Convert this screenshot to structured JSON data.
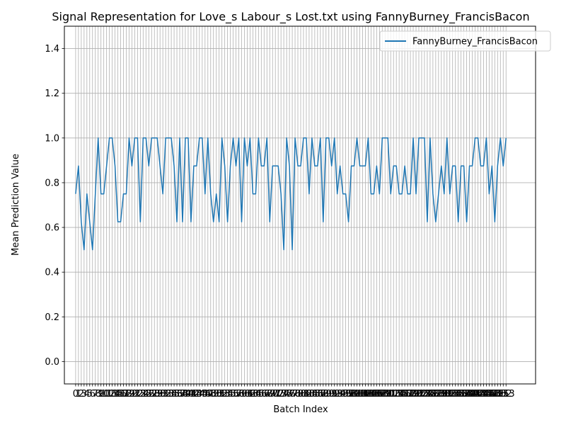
{
  "chart_data": {
    "type": "line",
    "title": "Signal Representation for Love_s Labour_s Lost.txt using FannyBurney_FrancisBacon",
    "xlabel": "Batch Index",
    "ylabel": "Mean Prediction Value",
    "xlim": [
      -4,
      163.5
    ],
    "ylim": [
      -0.1,
      1.5
    ],
    "yticks": [
      0.0,
      0.2,
      0.4,
      0.6,
      0.8,
      1.0,
      1.2,
      1.4
    ],
    "ytick_labels": [
      "0.0",
      "0.2",
      "0.4",
      "0.6",
      "0.8",
      "1.0",
      "1.2",
      "1.4"
    ],
    "xtick_count": 154,
    "grid": true,
    "legend_position": "upper right",
    "series": [
      {
        "name": "FannyBurney_FrancisBacon",
        "color": "#1f77b4",
        "values": [
          0.75,
          0.875,
          0.625,
          0.5,
          0.75,
          0.625,
          0.5,
          0.75,
          1.0,
          0.75,
          0.75,
          0.875,
          1.0,
          1.0,
          0.875,
          0.625,
          0.625,
          0.75,
          0.75,
          1.0,
          0.875,
          1.0,
          1.0,
          0.625,
          1.0,
          1.0,
          0.875,
          1.0,
          1.0,
          1.0,
          0.875,
          0.75,
          1.0,
          1.0,
          1.0,
          0.875,
          0.625,
          1.0,
          0.625,
          1.0,
          1.0,
          0.625,
          0.875,
          0.875,
          1.0,
          1.0,
          0.75,
          1.0,
          0.75,
          0.625,
          0.75,
          0.625,
          1.0,
          0.875,
          0.625,
          0.875,
          1.0,
          0.875,
          1.0,
          0.625,
          1.0,
          0.875,
          1.0,
          0.75,
          0.75,
          1.0,
          0.875,
          0.875,
          1.0,
          0.625,
          0.875,
          0.875,
          0.875,
          0.75,
          0.5,
          1.0,
          0.875,
          0.5,
          1.0,
          0.875,
          0.875,
          1.0,
          1.0,
          0.75,
          1.0,
          0.875,
          0.875,
          1.0,
          0.625,
          1.0,
          1.0,
          0.875,
          1.0,
          0.75,
          0.875,
          0.75,
          0.75,
          0.625,
          0.875,
          0.875,
          1.0,
          0.875,
          0.875,
          0.875,
          1.0,
          0.75,
          0.75,
          0.875,
          0.75,
          1.0,
          1.0,
          1.0,
          0.75,
          0.875,
          0.875,
          0.75,
          0.75,
          0.875,
          0.75,
          0.75,
          1.0,
          0.75,
          1.0,
          1.0,
          1.0,
          0.625,
          1.0,
          0.75,
          0.625,
          0.75,
          0.875,
          0.75,
          1.0,
          0.75,
          0.875,
          0.875,
          0.625,
          0.875,
          0.875,
          0.625,
          0.875,
          0.875,
          1.0,
          1.0,
          0.875,
          0.875,
          1.0,
          0.75,
          0.875,
          0.625,
          0.875,
          1.0,
          0.875,
          1.0
        ]
      }
    ]
  }
}
